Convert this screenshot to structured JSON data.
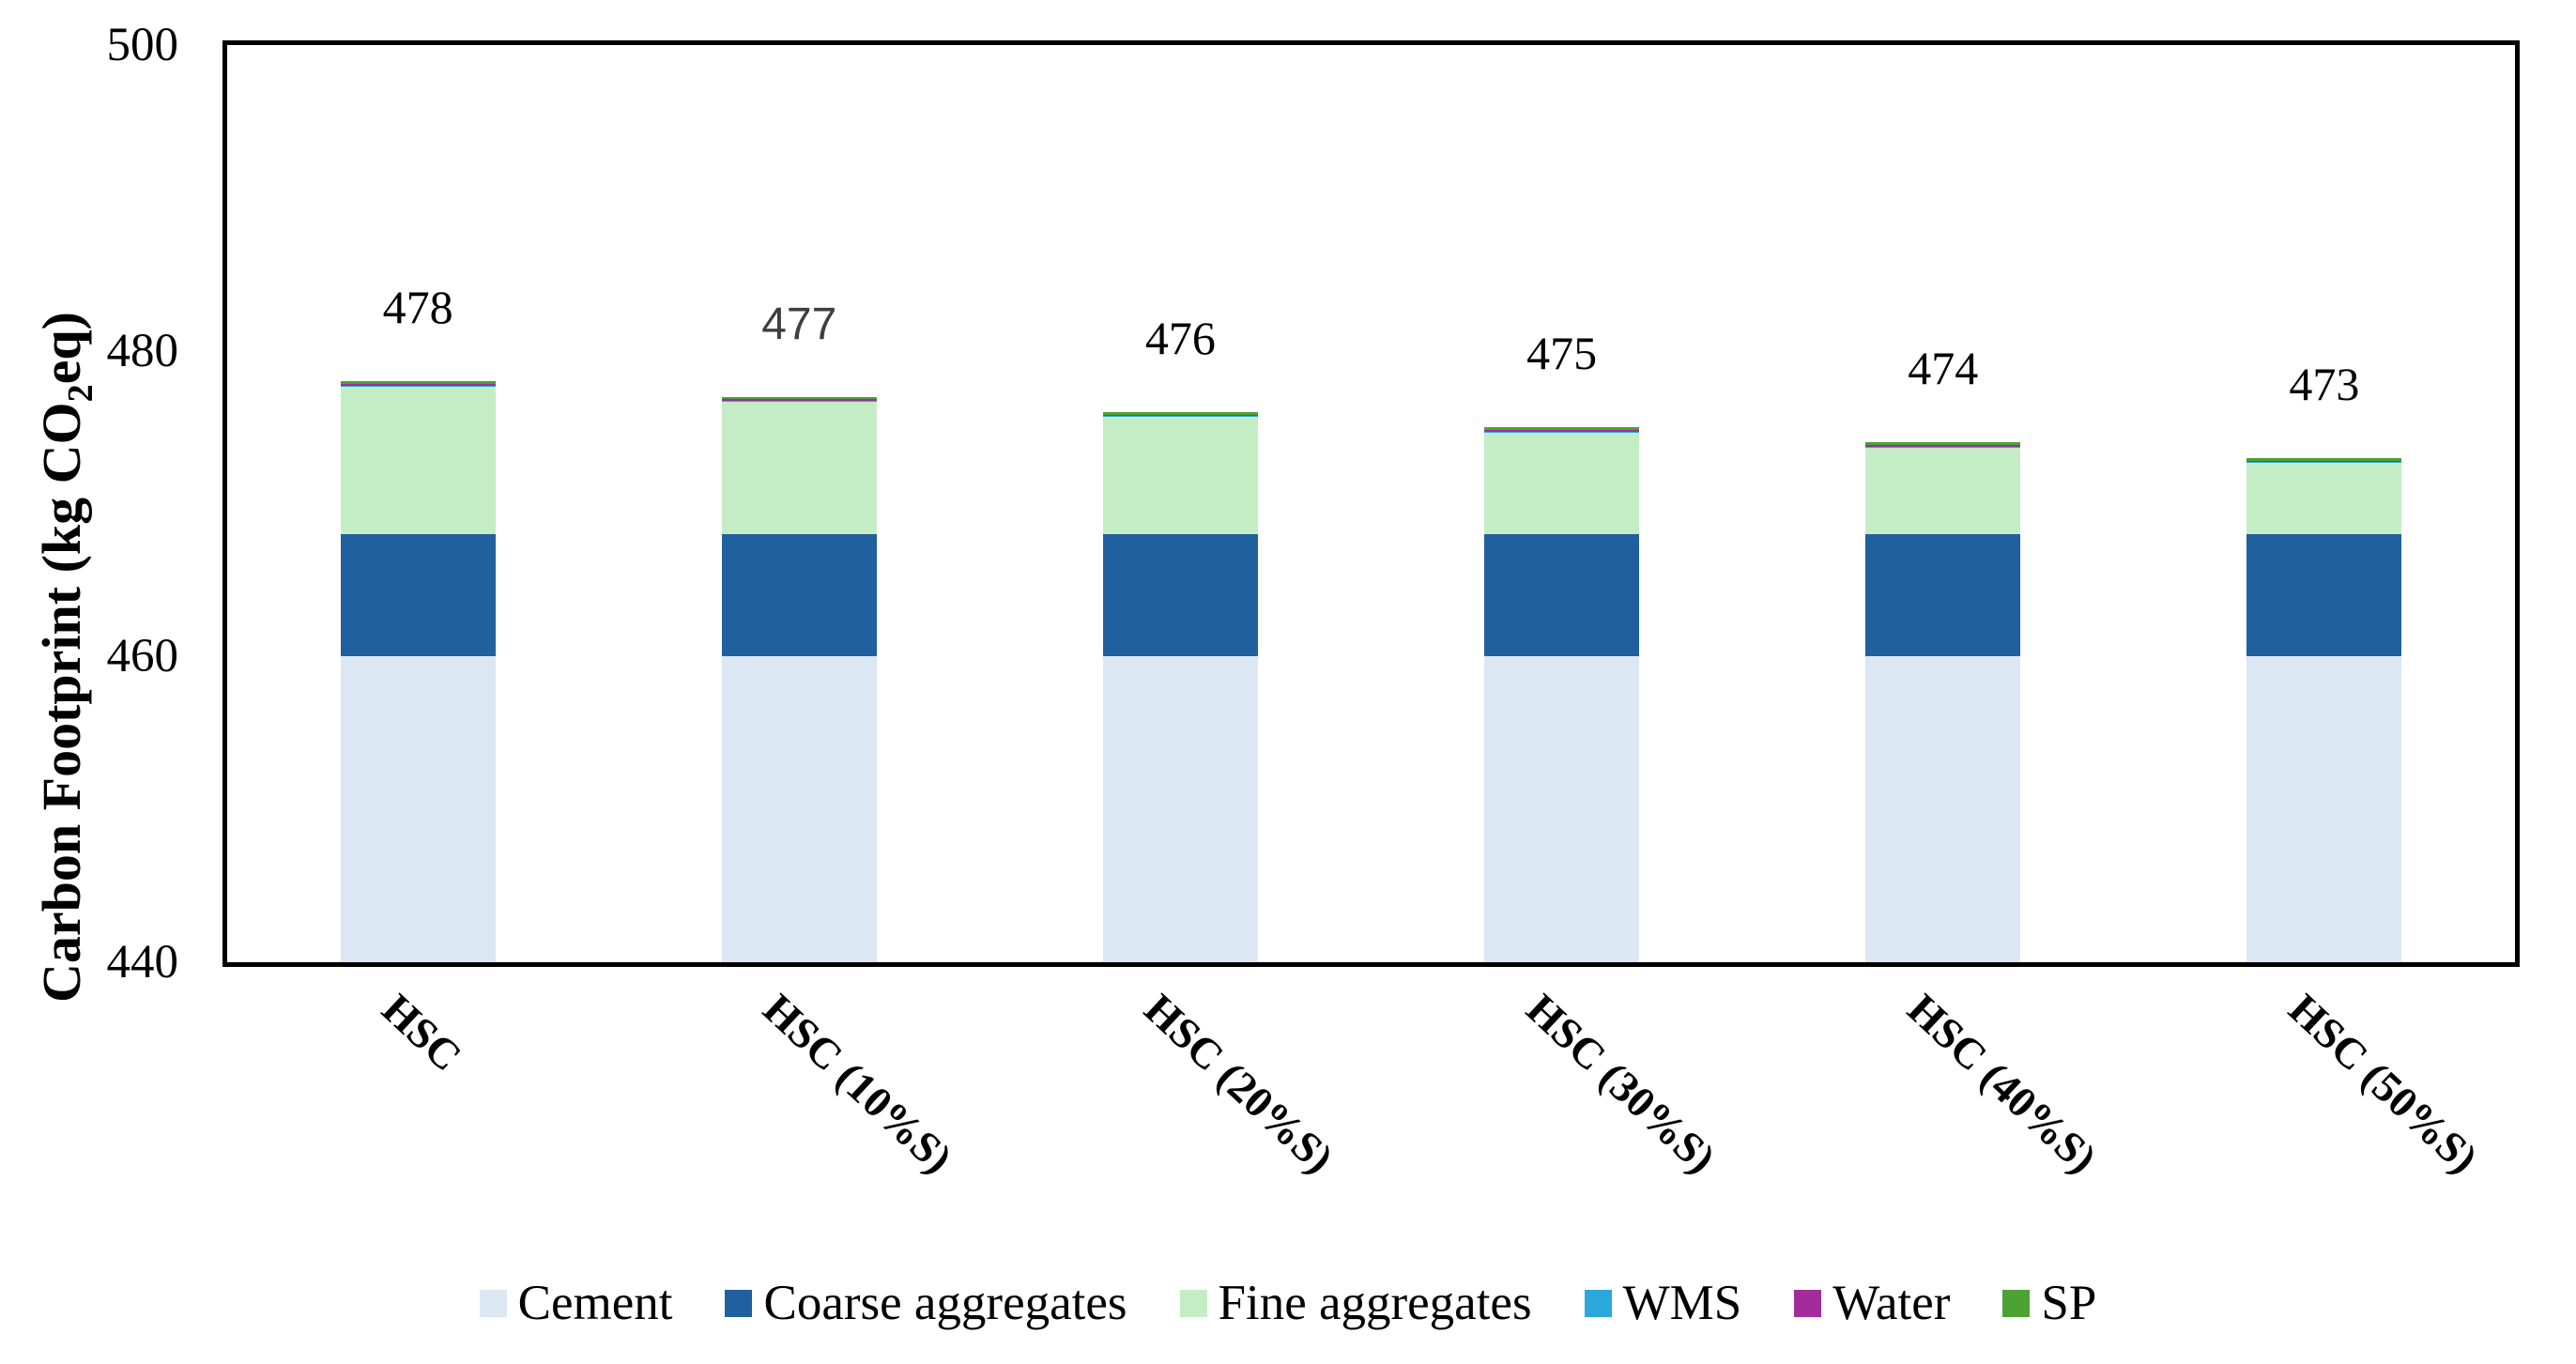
{
  "y_axis": {
    "title_prefix": "Carbon Footprint (kg CO",
    "title_sub": "2",
    "title_suffix": "eq)",
    "ticks": [
      500,
      480,
      460,
      440
    ],
    "min": 440,
    "max": 500
  },
  "chart_data": {
    "type": "bar",
    "stacked": true,
    "grid": false,
    "legend_position": "bottom",
    "title": "",
    "xlabel": "",
    "ylabel": "Carbon Footprint (kg CO2eq)",
    "ylim": [
      440,
      500
    ],
    "categories": [
      "HSC",
      "HSC (10%S)",
      "HSC (20%S)",
      "HSC (30%S)",
      "HSC (40%S)",
      "HSC (50%S)"
    ],
    "series": [
      {
        "name": "Cement",
        "color": "#dce7f4",
        "values": [
          460,
          460,
          460,
          460,
          460,
          460
        ]
      },
      {
        "name": "Coarse aggregates",
        "color": "#21609e",
        "values": [
          8,
          8,
          8,
          8,
          8,
          8
        ]
      },
      {
        "name": "Fine aggregates",
        "color": "#c5edc5",
        "values": [
          9.67,
          8.67,
          7.67,
          6.67,
          5.67,
          4.67
        ]
      },
      {
        "name": "WMS",
        "color": "#2aa8db",
        "values": [
          0.05,
          0.05,
          0.05,
          0.05,
          0.05,
          0.05
        ]
      },
      {
        "name": "Water",
        "color": "#a32b9b",
        "values": [
          0.1,
          0.1,
          0.1,
          0.1,
          0.1,
          0.1
        ]
      },
      {
        "name": "SP",
        "color": "#4ba232",
        "values": [
          0.18,
          0.18,
          0.18,
          0.18,
          0.18,
          0.18
        ]
      }
    ],
    "totals": [
      478,
      477,
      476,
      475,
      474,
      473
    ],
    "total_label_styles": [
      "serif-black",
      "sans-gray",
      "serif-black",
      "serif-black",
      "serif-black",
      "serif-black"
    ],
    "label_gray_color": "#3f3f3f",
    "axis_color": "#000000"
  },
  "legend": {
    "items": [
      {
        "label": "Cement",
        "color": "#dce7f4"
      },
      {
        "label": "Coarse aggregates",
        "color": "#21609e"
      },
      {
        "label": "Fine aggregates",
        "color": "#c5edc5"
      },
      {
        "label": "WMS",
        "color": "#2aa8db"
      },
      {
        "label": "Water",
        "color": "#a32b9b"
      },
      {
        "label": "SP",
        "color": "#4ba232"
      }
    ]
  }
}
